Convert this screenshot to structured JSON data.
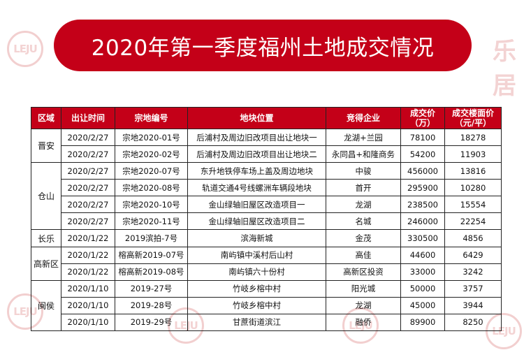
{
  "title": "2020年第一季度福州土地成交情况",
  "watermark": {
    "logo": "LEJU",
    "text": "乐居"
  },
  "table": {
    "headers": [
      "区域",
      "出让时间",
      "宗地编号",
      "地块位置",
      "竞得企业",
      "成交价\n（万）",
      "成交楼面价\n（元/平）"
    ],
    "groups": [
      {
        "region": "晋安",
        "rows": [
          [
            "2020/2/27",
            "宗地2020-01号",
            "后浦村及周边旧改项目出让地块一",
            "龙湖+兰园",
            "78100",
            "18278"
          ],
          [
            "2020/2/27",
            "宗地2020-02号",
            "后浦村及周边旧改项目出让地块二",
            "永同昌+和隆商务",
            "54200",
            "11903"
          ]
        ]
      },
      {
        "region": "仓山",
        "rows": [
          [
            "2020/2/27",
            "宗地2020-07号",
            "东升地铁停车场上盖及周边地块",
            "中骏",
            "456000",
            "13816"
          ],
          [
            "2020/2/27",
            "宗地2020-08号",
            "轨道交通4号线螺洲车辆段地块",
            "首开",
            "295900",
            "10280"
          ],
          [
            "2020/2/27",
            "宗地2020-10号",
            "金山绿轴旧屋区改造项目一",
            "龙湖",
            "238500",
            "15554"
          ],
          [
            "2020/2/27",
            "宗地2020-11号",
            "金山绿轴旧屋区改造项目二",
            "名城",
            "246000",
            "22254"
          ]
        ]
      },
      {
        "region": "长乐",
        "rows": [
          [
            "2020/1/22",
            "2019滨拍-7号",
            "滨海新城",
            "金茂",
            "330500",
            "4856"
          ]
        ]
      },
      {
        "region": "高新区",
        "rows": [
          [
            "2020/1/22",
            "榕高新2019-07号",
            "南屿镇中溪村后山村",
            "高佳",
            "44600",
            "6429"
          ],
          [
            "2020/1/22",
            "榕高新2019-08号",
            "南屿镇六十份村",
            "高新区投资",
            "33000",
            "3242"
          ]
        ]
      },
      {
        "region": "闽侯",
        "rows": [
          [
            "2020/1/10",
            "2019-27号",
            "竹岐乡榕中村",
            "阳光城",
            "50000",
            "3757"
          ],
          [
            "2020/1/10",
            "2019-28号",
            "竹岐乡榕中村",
            "龙湖",
            "45000",
            "3944"
          ],
          [
            "2020/1/10",
            "2019-29号",
            "甘蔗街道滨江",
            "融侨",
            "89900",
            "8250"
          ]
        ]
      }
    ]
  }
}
